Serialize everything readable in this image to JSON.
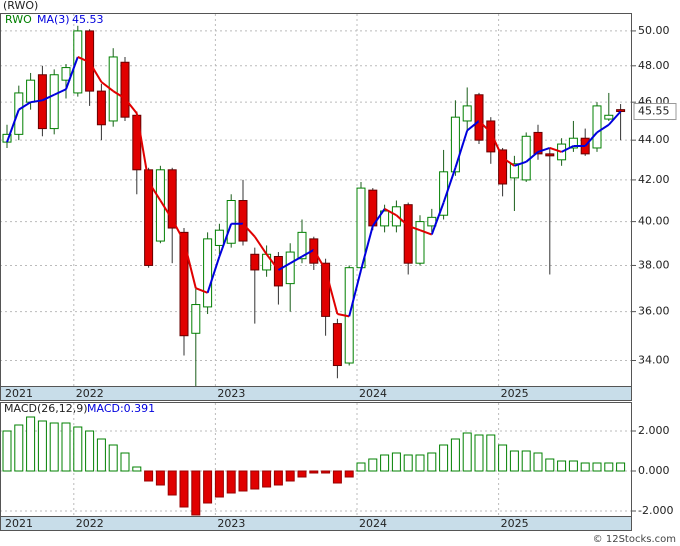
{
  "chart_data": [
    {
      "type": "candlestick",
      "title": "(RWO)",
      "symbol": "RWO",
      "ma_label": "MA(3)",
      "ma_value_label": "45.53",
      "last_label": "45.55",
      "categories": [
        "2021",
        null,
        null,
        null,
        null,
        null,
        "2022",
        null,
        null,
        null,
        null,
        null,
        null,
        null,
        null,
        null,
        null,
        null,
        "2023",
        null,
        null,
        null,
        null,
        null,
        null,
        null,
        null,
        null,
        null,
        null,
        "2024",
        null,
        null,
        null,
        null,
        null,
        null,
        null,
        null,
        null,
        null,
        null,
        "2025",
        null,
        null,
        null,
        null,
        null,
        null,
        null,
        null,
        null,
        null
      ],
      "open": [
        43.9,
        44.3,
        46.0,
        47.5,
        44.6,
        47.2,
        46.5,
        50.0,
        46.6,
        45.0,
        48.2,
        45.3,
        42.5,
        39.1,
        42.5,
        39.5,
        35.1,
        36.2,
        38.9,
        39.0,
        41.0,
        38.5,
        37.8,
        38.4,
        37.2,
        38.3,
        39.2,
        38.1,
        35.5,
        33.9,
        37.9,
        41.5,
        39.8,
        39.8,
        40.8,
        38.1,
        39.8,
        40.3,
        42.4,
        45.0,
        46.4,
        45.0,
        43.5,
        42.1,
        42.0,
        44.4,
        43.3,
        43.0,
        43.6,
        44.1,
        43.6,
        45.1,
        45.6
      ],
      "high": [
        44.8,
        46.9,
        47.6,
        48.0,
        47.8,
        48.1,
        50.3,
        50.1,
        47.0,
        49.0,
        48.5,
        45.5,
        42.6,
        42.7,
        42.6,
        39.7,
        37.0,
        39.5,
        39.9,
        41.3,
        42.0,
        38.8,
        38.9,
        38.6,
        39.0,
        40.1,
        39.3,
        38.3,
        35.7,
        38.0,
        41.9,
        41.6,
        40.8,
        41.0,
        40.9,
        40.3,
        40.6,
        43.5,
        46.1,
        46.8,
        46.5,
        45.2,
        43.6,
        43.2,
        44.4,
        44.8,
        43.6,
        44.1,
        45.0,
        44.6,
        46.0,
        46.5,
        45.9
      ],
      "low": [
        43.6,
        44.0,
        45.6,
        44.2,
        44.3,
        46.2,
        46.3,
        45.8,
        44.0,
        44.7,
        45.0,
        41.3,
        37.9,
        39.0,
        38.1,
        34.2,
        33.0,
        35.9,
        38.5,
        38.8,
        38.9,
        35.5,
        37.5,
        36.3,
        36.0,
        38.1,
        37.8,
        35.0,
        33.3,
        33.8,
        37.7,
        39.6,
        39.5,
        39.5,
        37.6,
        38.0,
        39.5,
        40.1,
        42.2,
        44.5,
        43.8,
        42.8,
        41.2,
        40.5,
        41.9,
        43.0,
        37.6,
        42.7,
        43.4,
        43.2,
        43.4,
        45.0,
        44.0
      ],
      "close": [
        44.3,
        46.5,
        47.2,
        44.6,
        47.5,
        47.9,
        50.0,
        46.6,
        44.8,
        48.5,
        45.2,
        42.5,
        38.0,
        42.5,
        39.7,
        35.0,
        36.3,
        39.2,
        39.6,
        41.0,
        39.1,
        37.8,
        38.5,
        37.1,
        38.6,
        39.5,
        38.1,
        35.8,
        33.8,
        37.9,
        41.6,
        39.8,
        40.5,
        40.7,
        38.1,
        40.0,
        40.2,
        42.4,
        45.2,
        45.8,
        44.0,
        43.4,
        41.8,
        42.8,
        44.2,
        43.3,
        43.2,
        43.8,
        44.1,
        43.3,
        45.8,
        45.3,
        45.5
      ],
      "ma": [
        43.9,
        45.6,
        46.0,
        46.1,
        46.4,
        46.7,
        48.5,
        48.2,
        47.1,
        46.6,
        46.2,
        45.4,
        41.9,
        41.0,
        40.1,
        39.1,
        37.0,
        36.8,
        38.4,
        39.9,
        39.9,
        39.3,
        38.5,
        37.8,
        38.1,
        38.4,
        38.7,
        37.8,
        35.9,
        35.8,
        37.8,
        39.8,
        40.6,
        40.3,
        39.8,
        39.6,
        39.4,
        40.9,
        42.6,
        44.5,
        45.0,
        44.4,
        43.1,
        42.7,
        42.9,
        43.4,
        43.6,
        43.4,
        43.7,
        43.7,
        44.4,
        44.8,
        45.5
      ],
      "up_color": "#008000",
      "down_color": "#e00000",
      "ma_up_color": "#0000dd",
      "ma_down_color": "#e00000",
      "ylim": [
        33,
        51
      ],
      "log": true,
      "grid": true,
      "yticks": [
        {
          "value": 34,
          "label": "34.00"
        },
        {
          "value": 36,
          "label": "36.00"
        },
        {
          "value": 38,
          "label": "38.00"
        },
        {
          "value": 40,
          "label": "40.00"
        },
        {
          "value": 42,
          "label": "42.00"
        },
        {
          "value": 44,
          "label": "44.00"
        },
        {
          "value": 46,
          "label": "46.00"
        },
        {
          "value": 48,
          "label": "48.00"
        },
        {
          "value": 50,
          "label": "50.00"
        }
      ]
    },
    {
      "type": "bar",
      "title": "MACD(26,12,9)",
      "value_label": "MACD:0.391",
      "categories": [
        "2021",
        null,
        null,
        null,
        null,
        null,
        "2022",
        null,
        null,
        null,
        null,
        null,
        null,
        null,
        null,
        null,
        null,
        null,
        "2023",
        null,
        null,
        null,
        null,
        null,
        null,
        null,
        null,
        null,
        null,
        null,
        "2024",
        null,
        null,
        null,
        null,
        null,
        null,
        null,
        null,
        null,
        null,
        null,
        "2025",
        null,
        null,
        null,
        null,
        null,
        null,
        null,
        null,
        null,
        null
      ],
      "values": [
        2.0,
        2.3,
        2.7,
        2.5,
        2.4,
        2.4,
        2.2,
        2.0,
        1.6,
        1.3,
        0.9,
        0.2,
        -0.5,
        -0.7,
        -1.2,
        -1.8,
        -2.2,
        -1.6,
        -1.3,
        -1.1,
        -1.0,
        -0.9,
        -0.8,
        -0.7,
        -0.5,
        -0.3,
        -0.1,
        -0.1,
        -0.6,
        -0.3,
        0.4,
        0.6,
        0.8,
        0.9,
        0.8,
        0.8,
        0.9,
        1.3,
        1.6,
        1.9,
        1.8,
        1.8,
        1.3,
        1.0,
        1.0,
        0.9,
        0.6,
        0.5,
        0.5,
        0.4,
        0.4,
        0.4,
        0.4
      ],
      "up_color": "#008000",
      "down_color": "#e00000",
      "ylim": [
        -2.25,
        3.4
      ],
      "grid": true,
      "yticks": [
        {
          "value": -2,
          "label": "-2.000"
        },
        {
          "value": 0,
          "label": "0.000"
        },
        {
          "value": 2,
          "label": "2.000"
        }
      ]
    }
  ],
  "footer": "© 12Stocks.com"
}
